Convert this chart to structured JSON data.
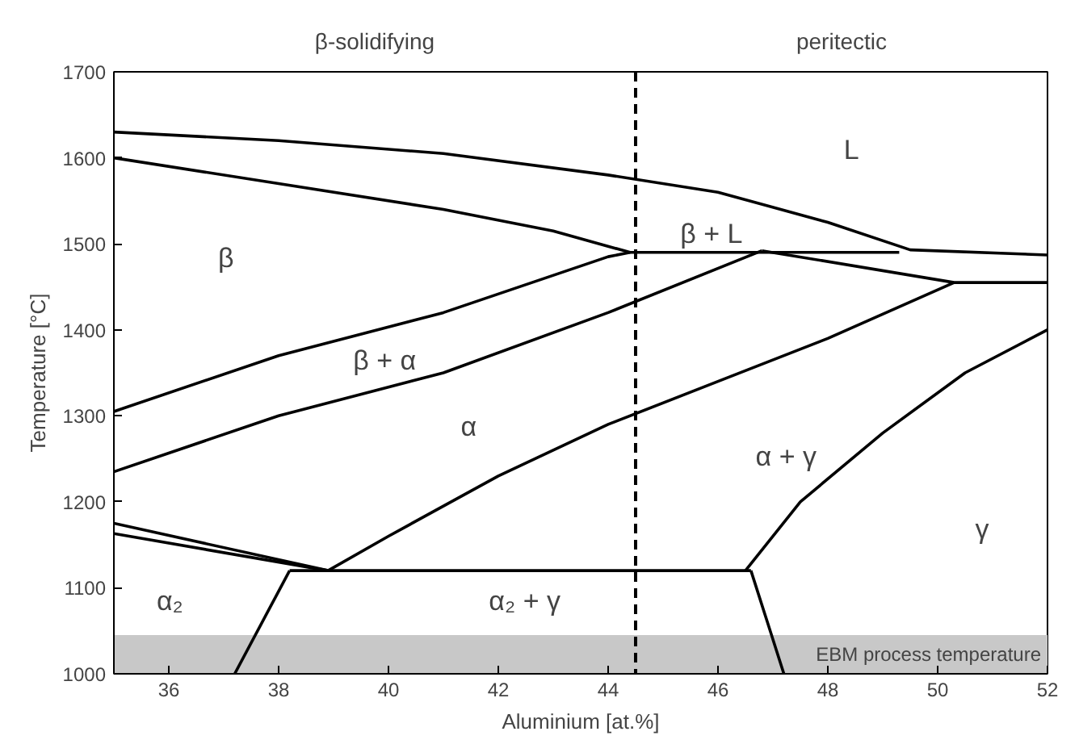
{
  "chart_data": {
    "type": "line",
    "xlabel": "Aluminium [at.%]",
    "ylabel": "Temperature [°C]",
    "xlim": [
      35,
      52
    ],
    "ylim": [
      1000,
      1700
    ],
    "xticks": [
      36,
      38,
      40,
      42,
      44,
      46,
      48,
      50,
      52
    ],
    "yticks": [
      1000,
      1100,
      1200,
      1300,
      1400,
      1500,
      1600,
      1700
    ],
    "grid": false,
    "marker": "none",
    "line_style": "solid",
    "series": [
      {
        "color": "#000000",
        "x": [
          35,
          38,
          41,
          44,
          46,
          48,
          49.5,
          52
        ],
        "values": [
          1630,
          1620,
          1605,
          1580,
          1560,
          1525,
          1493,
          1487
        ]
      },
      {
        "color": "#000000",
        "x": [
          35,
          38,
          41,
          43,
          44.4,
          49.3
        ],
        "values": [
          1600,
          1570,
          1540,
          1515,
          1490,
          1490
        ]
      },
      {
        "color": "#000000",
        "x": [
          46.8,
          50.3,
          52
        ],
        "values": [
          1492,
          1455,
          1455
        ]
      },
      {
        "color": "#000000",
        "x": [
          35,
          38,
          41,
          44,
          44.4
        ],
        "values": [
          1305,
          1370,
          1420,
          1485,
          1490
        ]
      },
      {
        "color": "#000000",
        "x": [
          35,
          38,
          41,
          44,
          46.8
        ],
        "values": [
          1235,
          1300,
          1350,
          1420,
          1492
        ]
      },
      {
        "color": "#000000",
        "x": [
          38.9,
          40,
          42,
          44,
          46,
          48,
          50.3
        ],
        "values": [
          1120,
          1160,
          1230,
          1290,
          1340,
          1390,
          1455
        ]
      },
      {
        "color": "#000000",
        "x": [
          46.5,
          47.5,
          49,
          50.5,
          52
        ],
        "values": [
          1120,
          1200,
          1280,
          1350,
          1400
        ]
      },
      {
        "color": "#000000",
        "x": [
          35,
          38.9
        ],
        "values": [
          1175,
          1120
        ]
      },
      {
        "color": "#000000",
        "x": [
          35,
          38.9
        ],
        "values": [
          1163,
          1120
        ]
      },
      {
        "color": "#000000",
        "x": [
          38.2,
          46.6
        ],
        "values": [
          1120,
          1120
        ]
      },
      {
        "color": "#000000",
        "x": [
          37.2,
          38.2
        ],
        "values": [
          1000,
          1120
        ]
      },
      {
        "color": "#000000",
        "x": [
          46.6,
          46.9,
          47.2
        ],
        "values": [
          1120,
          1060,
          1000
        ]
      }
    ],
    "ref_lines": [
      {
        "axis": "x",
        "value": 44.5,
        "line_style": "dashed",
        "color": "#000000"
      }
    ],
    "bands": [
      {
        "axis": "y",
        "from": 1000,
        "to": 1045,
        "label": "EBM process temperature",
        "color": "#c8c8c8"
      }
    ],
    "annotations": [
      "β-solidifying",
      "peritectic",
      "L",
      "β",
      "β + L",
      "β + α",
      "α",
      "α + γ",
      "γ",
      "α₂",
      "α₂ + γ"
    ]
  }
}
